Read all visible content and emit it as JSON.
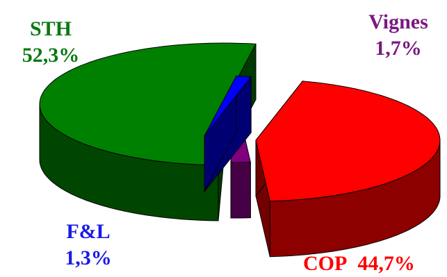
{
  "chart_data": {
    "type": "pie",
    "title": "",
    "style": "3d-exploded",
    "slices": [
      {
        "name": "STH",
        "value": 52.3,
        "label": "52,3%",
        "color": "#008000",
        "label_color": "#0a7a12"
      },
      {
        "name": "Vignes",
        "value": 1.7,
        "label": "1,7%",
        "color": "#800080",
        "label_color": "#7a1a80"
      },
      {
        "name": "COP",
        "value": 44.7,
        "label": "44,7%",
        "color": "#ff0000",
        "label_color": "#ff0000"
      },
      {
        "name": "F&L",
        "value": 1.3,
        "label": "1,3%",
        "color": "#0000ff",
        "label_color": "#1a1ae6"
      }
    ]
  }
}
